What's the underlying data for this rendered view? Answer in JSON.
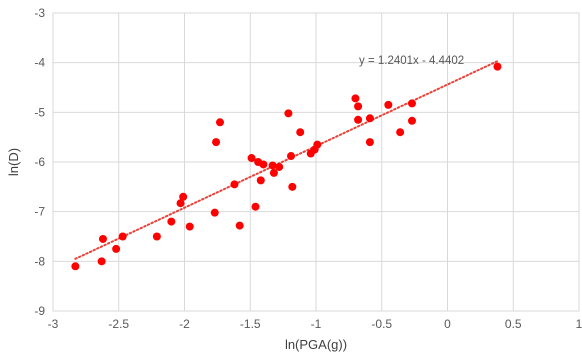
{
  "chart_data": {
    "type": "scatter",
    "xlabel": "ln(PGA(g))",
    "ylabel": "ln(D)",
    "xlim": [
      -3,
      1
    ],
    "ylim": [
      -9,
      -3
    ],
    "x_ticks": [
      -3,
      -2.5,
      -2,
      -1.5,
      -1,
      -0.5,
      0,
      0.5,
      1
    ],
    "y_ticks": [
      -9,
      -8,
      -7,
      -6,
      -5,
      -4,
      -3
    ],
    "x_tick_labels": [
      "-3",
      "-2.5",
      "-2",
      "-1.5",
      "-1",
      "-0.5",
      "0",
      "0.5",
      "1"
    ],
    "y_tick_labels": [
      "-9",
      "-8",
      "-7",
      "-6",
      "-5",
      "-4",
      "-3"
    ],
    "grid": "both",
    "marker_color": "#ff0000",
    "trendline": {
      "slope": 1.2401,
      "intercept": -4.4402,
      "equation": "y = 1.2401x - 4.4402",
      "color": "#e8433b",
      "style": "dotted"
    },
    "points": [
      {
        "x": -2.83,
        "y": -8.1
      },
      {
        "x": -2.63,
        "y": -8.0
      },
      {
        "x": -2.62,
        "y": -7.55
      },
      {
        "x": -2.52,
        "y": -7.75
      },
      {
        "x": -2.47,
        "y": -7.5
      },
      {
        "x": -2.21,
        "y": -7.5
      },
      {
        "x": -2.1,
        "y": -7.2
      },
      {
        "x": -2.03,
        "y": -6.83
      },
      {
        "x": -2.01,
        "y": -6.7
      },
      {
        "x": -1.96,
        "y": -7.3
      },
      {
        "x": -1.77,
        "y": -7.02
      },
      {
        "x": -1.76,
        "y": -5.6
      },
      {
        "x": -1.73,
        "y": -5.2
      },
      {
        "x": -1.62,
        "y": -6.45
      },
      {
        "x": -1.58,
        "y": -7.28
      },
      {
        "x": -1.49,
        "y": -5.92
      },
      {
        "x": -1.46,
        "y": -6.9
      },
      {
        "x": -1.44,
        "y": -6.0
      },
      {
        "x": -1.42,
        "y": -6.37
      },
      {
        "x": -1.4,
        "y": -6.05
      },
      {
        "x": -1.33,
        "y": -6.07
      },
      {
        "x": -1.32,
        "y": -6.22
      },
      {
        "x": -1.28,
        "y": -6.1
      },
      {
        "x": -1.21,
        "y": -5.02
      },
      {
        "x": -1.19,
        "y": -5.88
      },
      {
        "x": -1.18,
        "y": -6.5
      },
      {
        "x": -1.12,
        "y": -5.4
      },
      {
        "x": -1.04,
        "y": -5.83
      },
      {
        "x": -1.01,
        "y": -5.75
      },
      {
        "x": -0.99,
        "y": -5.65
      },
      {
        "x": -0.7,
        "y": -4.72
      },
      {
        "x": -0.68,
        "y": -4.88
      },
      {
        "x": -0.68,
        "y": -5.15
      },
      {
        "x": -0.59,
        "y": -5.12
      },
      {
        "x": -0.59,
        "y": -5.6
      },
      {
        "x": -0.45,
        "y": -4.85
      },
      {
        "x": -0.36,
        "y": -5.4
      },
      {
        "x": -0.27,
        "y": -4.82
      },
      {
        "x": -0.27,
        "y": -5.17
      },
      {
        "x": 0.38,
        "y": -4.08
      }
    ]
  }
}
